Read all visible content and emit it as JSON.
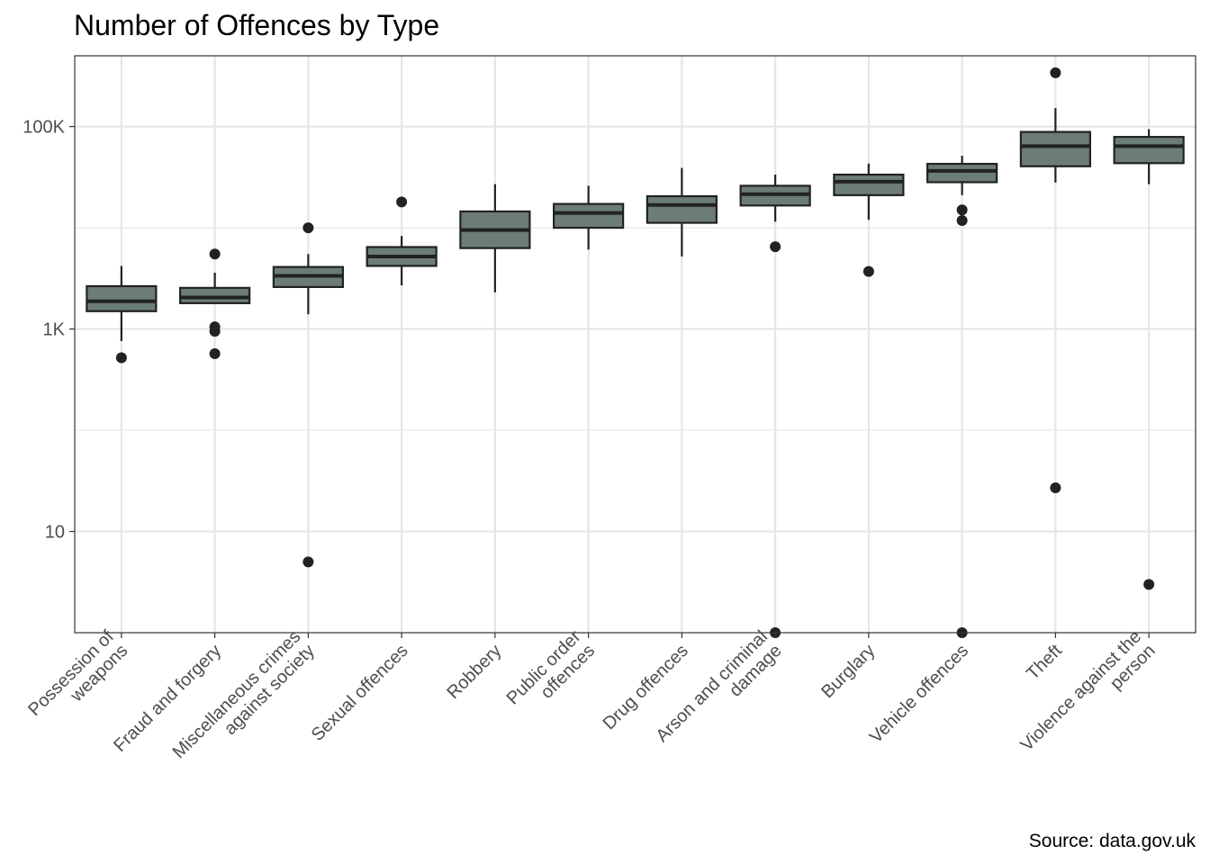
{
  "chart_data": {
    "type": "boxplot",
    "title": "Number of Offences by Type",
    "caption": "Source: data.gov.uk",
    "xlabel": "",
    "ylabel": "",
    "y_scale": "log10",
    "ylim": [
      1,
      500000
    ],
    "y_ticks": [
      {
        "value": 10,
        "label": "10"
      },
      {
        "value": 1000,
        "label": "1K"
      },
      {
        "value": 100000,
        "label": "100K"
      }
    ],
    "grid": true,
    "colors": {
      "box_fill": "#6b7d76",
      "box_line": "#222222",
      "point": "#222222",
      "grid": "#e6e6e6",
      "panel_border": "#333333"
    },
    "categories": [
      {
        "label": [
          "Possession of",
          "weapons"
        ],
        "whisker_low": 760,
        "q1": 1500,
        "median": 1880,
        "q3": 2650,
        "whisker_high": 4200,
        "outliers": [
          520
        ]
      },
      {
        "label": [
          "Fraud and forgery"
        ],
        "whisker_low": 1780,
        "q1": 1800,
        "median": 2050,
        "q3": 2550,
        "whisker_high": 3600,
        "outliers": [
          5500,
          1050,
          950,
          570
        ]
      },
      {
        "label": [
          "Miscellaneous crimes",
          "against society"
        ],
        "whisker_low": 1400,
        "q1": 2600,
        "median": 3350,
        "q3": 4100,
        "whisker_high": 5500,
        "outliers": [
          10000,
          5
        ]
      },
      {
        "label": [
          "Sexual offences"
        ],
        "whisker_low": 2700,
        "q1": 4200,
        "median": 5200,
        "q3": 6450,
        "whisker_high": 8300,
        "outliers": [
          18000
        ]
      },
      {
        "label": [
          "Robbery"
        ],
        "whisker_low": 2300,
        "q1": 6300,
        "median": 9500,
        "q3": 14500,
        "whisker_high": 27000,
        "outliers": []
      },
      {
        "label": [
          "Public order",
          "offences"
        ],
        "whisker_low": 6100,
        "q1": 10000,
        "median": 14000,
        "q3": 17200,
        "whisker_high": 26000,
        "outliers": []
      },
      {
        "label": [
          "Drug offences"
        ],
        "whisker_low": 5200,
        "q1": 11200,
        "median": 16800,
        "q3": 20500,
        "whisker_high": 39000,
        "outliers": []
      },
      {
        "label": [
          "Arson and criminal",
          "damage"
        ],
        "whisker_low": 11500,
        "q1": 16600,
        "median": 21500,
        "q3": 26000,
        "whisker_high": 33500,
        "outliers": [
          6500,
          1
        ]
      },
      {
        "label": [
          "Burglary"
        ],
        "whisker_low": 12000,
        "q1": 21000,
        "median": 28500,
        "q3": 33500,
        "whisker_high": 43000,
        "outliers": [
          3700
        ]
      },
      {
        "label": [
          "Vehicle offences"
        ],
        "whisker_low": 21000,
        "q1": 28200,
        "median": 36500,
        "q3": 42800,
        "whisker_high": 51500,
        "outliers": [
          15000,
          11800,
          1
        ]
      },
      {
        "label": [
          "Theft"
        ],
        "whisker_low": 28000,
        "q1": 40500,
        "median": 64000,
        "q3": 88500,
        "whisker_high": 152000,
        "outliers": [
          340000,
          27
        ]
      },
      {
        "label": [
          "Violence against the",
          "person"
        ],
        "whisker_low": 27000,
        "q1": 43500,
        "median": 64000,
        "q3": 79000,
        "whisker_high": 94000,
        "outliers": [
          3
        ]
      }
    ]
  }
}
